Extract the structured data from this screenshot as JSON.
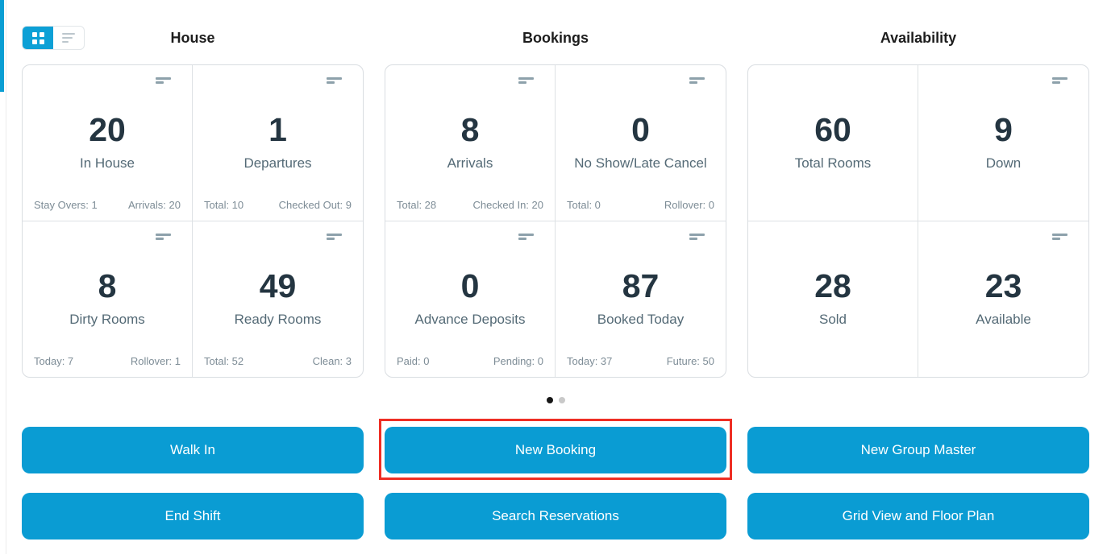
{
  "view_toggle": {
    "grid_icon": "grid-view-icon",
    "list_icon": "list-view-icon",
    "active": "grid"
  },
  "sections": [
    {
      "title": "House",
      "cards": [
        {
          "value": "20",
          "label": "In House",
          "stat_left": "Stay Overs: 1",
          "stat_right": "Arrivals: 20"
        },
        {
          "value": "1",
          "label": "Departures",
          "stat_left": "Total: 10",
          "stat_right": "Checked Out: 9"
        },
        {
          "value": "8",
          "label": "Dirty Rooms",
          "stat_left": "Today: 7",
          "stat_right": "Rollover: 1"
        },
        {
          "value": "49",
          "label": "Ready Rooms",
          "stat_left": "Total: 52",
          "stat_right": "Clean: 3"
        }
      ]
    },
    {
      "title": "Bookings",
      "cards": [
        {
          "value": "8",
          "label": "Arrivals",
          "stat_left": "Total: 28",
          "stat_right": "Checked In: 20"
        },
        {
          "value": "0",
          "label": "No Show/Late Cancel",
          "stat_left": "Total: 0",
          "stat_right": "Rollover: 0"
        },
        {
          "value": "0",
          "label": "Advance Deposits",
          "stat_left": "Paid: 0",
          "stat_right": "Pending: 0"
        },
        {
          "value": "87",
          "label": "Booked Today",
          "stat_left": "Today: 37",
          "stat_right": "Future: 50"
        }
      ]
    },
    {
      "title": "Availability",
      "cards": [
        {
          "value": "60",
          "label": "Total Rooms"
        },
        {
          "value": "9",
          "label": "Down"
        },
        {
          "value": "28",
          "label": "Sold"
        },
        {
          "value": "23",
          "label": "Available"
        }
      ]
    }
  ],
  "card_menu_icon": "menu-lines-icon",
  "carousel": {
    "page_count": 2,
    "active_page": 1
  },
  "actions": {
    "rows": [
      [
        {
          "label": "Walk In"
        },
        {
          "label": "New Booking",
          "highlighted": true
        },
        {
          "label": "New Group Master"
        }
      ],
      [
        {
          "label": "End Shift"
        },
        {
          "label": "Search Reservations"
        },
        {
          "label": "Grid View and Floor Plan"
        }
      ]
    ]
  },
  "colors": {
    "accent_blue": "#0a9cd3",
    "highlight_red": "#ee2e24",
    "number_dark": "#243541",
    "label_slate": "#546a76",
    "stat_gray": "#7d8c96"
  }
}
